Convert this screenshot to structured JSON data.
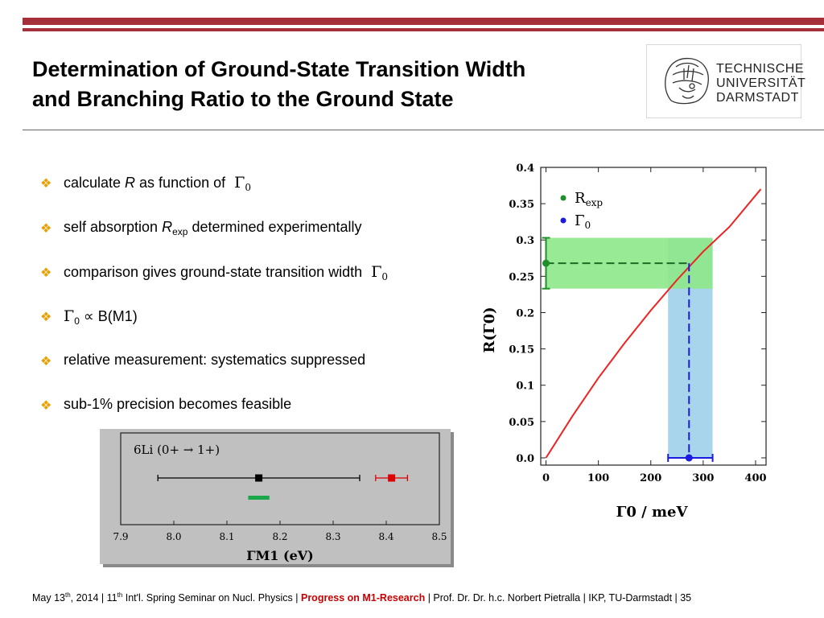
{
  "slide": {
    "title_line1": "Determination of Ground-State Transition Width",
    "title_line2": "and Branching Ratio to the Ground State",
    "logo": {
      "line1": "TECHNISCHE",
      "line2": "UNIVERSITÄT",
      "line3": "DARMSTADT"
    }
  },
  "bullets": [
    {
      "a": "calculate ",
      "b": "R",
      "c": " as function of ",
      "sym": "Γ",
      "sub": "0"
    },
    {
      "a": "self absorption ",
      "b": "R",
      "sub": "exp",
      "c": " determined experimentally"
    },
    {
      "a": "comparison gives ground-state transition width ",
      "sym": "Γ",
      "sub": "0"
    },
    {
      "sym": "Γ",
      "sub": "0",
      "c": " ∝ B(M1)"
    },
    {
      "a": "relative measurement: systematics suppressed"
    },
    {
      "a": "sub-1% precision becomes feasible"
    }
  ],
  "footer": {
    "date_pre": "May 13",
    "date_sup": "th",
    "date_post": ", 2014 | 11",
    "conf_sup": "th",
    "conf_post": " Int'l. Spring Seminar on Nucl. Physics | ",
    "highlight": "Progress on M1-Research",
    "rest": " |  Prof. Dr. Dr. h.c. Norbert Pietralla  | IKP, TU-Darmstadt |   35"
  },
  "colors": {
    "accent": "#a5303a",
    "bullet": "#e8a000",
    "highlight": "#c80000"
  },
  "chart_data": [
    {
      "type": "line",
      "ylabel": "R(Γ0)",
      "xlabel": "Γ0 / meV",
      "xlim": [
        -10,
        420
      ],
      "ylim": [
        -0.01,
        0.4
      ],
      "xticks": [
        "0",
        "100",
        "200",
        "300",
        "400"
      ],
      "yticks": [
        "0.0",
        "0.05",
        "0.1",
        "0.15",
        "0.2",
        "0.25",
        "0.3",
        "0.35",
        "0.4"
      ],
      "legend": [
        "R_exp",
        "Γ0"
      ],
      "legend_position": "top-left",
      "series": [
        {
          "x": [
            0,
            50,
            100,
            150,
            200,
            250,
            300,
            350,
            410
          ],
          "y": [
            0.0,
            0.057,
            0.11,
            0.158,
            0.203,
            0.245,
            0.284,
            0.318,
            0.37
          ],
          "color": "#ee2222"
        }
      ],
      "r_exp": {
        "value": 0.268,
        "low": 0.233,
        "high": 0.303,
        "color": "#1f8f2a",
        "band": "#8de88a"
      },
      "gamma0": {
        "value": 273,
        "low": 233,
        "high": 318,
        "color": "#1a1ae0",
        "band": "#a8d4ec"
      }
    },
    {
      "type": "scatter",
      "annotation": "6Li (0+ → 1+)",
      "xlabel": "ΓM1 (eV)",
      "xlim": [
        7.9,
        8.5
      ],
      "xticks": [
        "7.9",
        "8.0",
        "8.1",
        "8.2",
        "8.3",
        "8.4",
        "8.5"
      ],
      "points": [
        {
          "x": 8.16,
          "xmin": 7.97,
          "xmax": 8.35,
          "color": "#000000"
        },
        {
          "x": 8.41,
          "xmin": 8.38,
          "xmax": 8.44,
          "color": "#dd0000"
        }
      ],
      "band": {
        "xmin": 8.14,
        "xmax": 8.18,
        "color": "#1aa84a"
      }
    }
  ]
}
